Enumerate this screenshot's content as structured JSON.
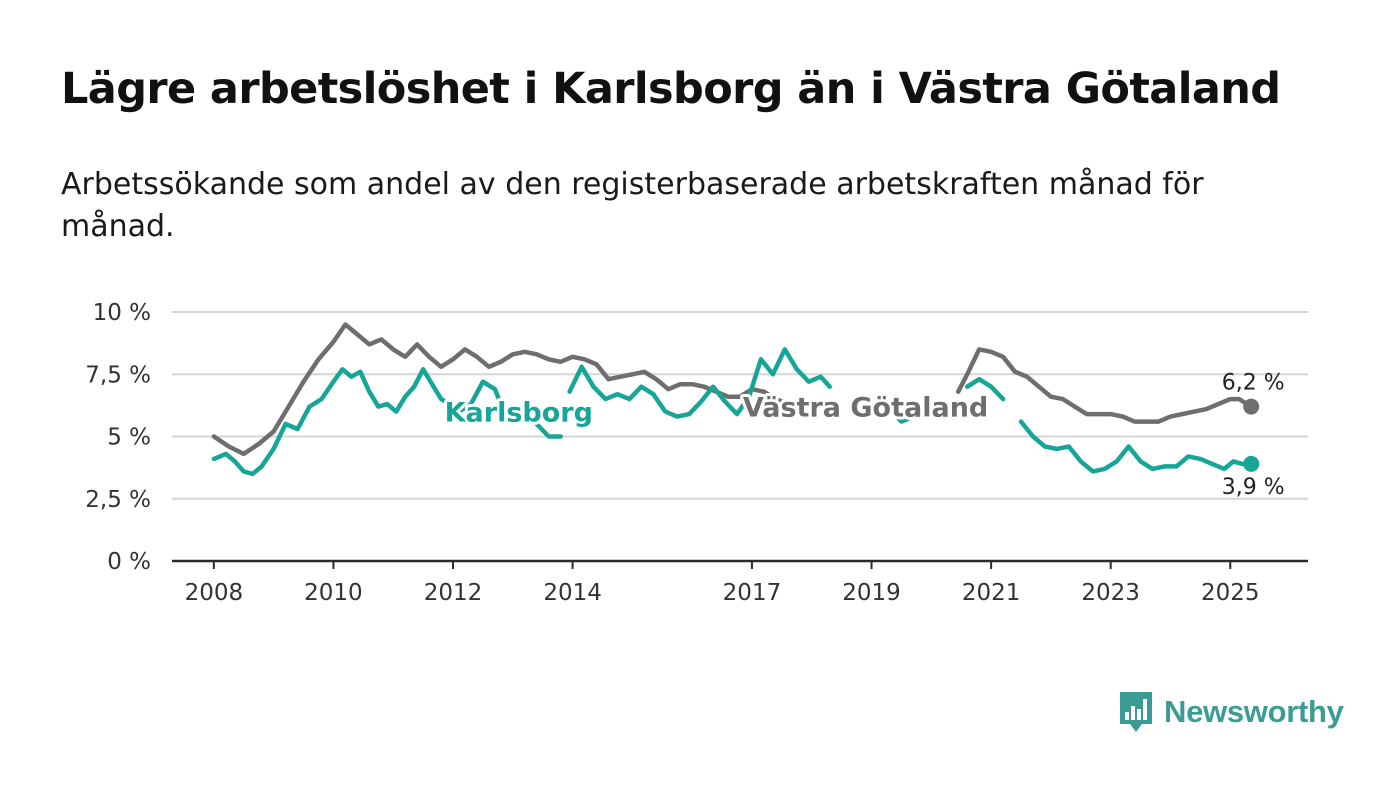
{
  "title": "Lägre arbetslöshet i Karlsborg än i Västra Götaland",
  "subtitle": "Arbetssökande som andel av den registerbaserade arbetskraften månad för månad.",
  "brand": {
    "name": "Newsworthy",
    "color": "#3b9c96"
  },
  "chart_data": {
    "type": "line",
    "title": "Lägre arbetslöshet i Karlsborg än i Västra Götaland",
    "ylim": [
      0,
      10
    ],
    "xlim": [
      2007.3,
      2026.3
    ],
    "y_ticks": [
      0,
      2.5,
      5,
      7.5,
      10
    ],
    "y_tick_labels": [
      "0 %",
      "2,5 %",
      "5 %",
      "7,5 %",
      "10 %"
    ],
    "x_ticks": [
      2008,
      2010,
      2012,
      2014,
      2017,
      2019,
      2021,
      2023,
      2025
    ],
    "x_tick_labels": [
      "2008",
      "2010",
      "2012",
      "2014",
      "2017",
      "2019",
      "2021",
      "2023",
      "2025"
    ],
    "grid": "horizontal",
    "legend": "inline labels",
    "series": [
      {
        "name": "Västra Götaland",
        "color": "#6e6e71",
        "label_pos": [
          2018.9,
          6.2
        ],
        "end_value_label": "6,2 %",
        "segments": [
          [
            [
              2008.0,
              5.0
            ],
            [
              2008.25,
              4.6
            ],
            [
              2008.5,
              4.3
            ],
            [
              2008.75,
              4.7
            ],
            [
              2009.0,
              5.2
            ],
            [
              2009.25,
              6.2
            ],
            [
              2009.5,
              7.2
            ],
            [
              2009.75,
              8.1
            ],
            [
              2010.0,
              8.8
            ],
            [
              2010.2,
              9.5
            ],
            [
              2010.4,
              9.1
            ],
            [
              2010.6,
              8.7
            ],
            [
              2010.8,
              8.9
            ],
            [
              2011.0,
              8.5
            ],
            [
              2011.2,
              8.2
            ],
            [
              2011.4,
              8.7
            ],
            [
              2011.6,
              8.2
            ],
            [
              2011.8,
              7.8
            ],
            [
              2012.0,
              8.1
            ],
            [
              2012.2,
              8.5
            ],
            [
              2012.4,
              8.2
            ],
            [
              2012.6,
              7.8
            ],
            [
              2012.8,
              8.0
            ],
            [
              2013.0,
              8.3
            ],
            [
              2013.2,
              8.4
            ],
            [
              2013.4,
              8.3
            ],
            [
              2013.6,
              8.1
            ],
            [
              2013.8,
              8.0
            ],
            [
              2014.0,
              8.2
            ],
            [
              2014.2,
              8.1
            ],
            [
              2014.4,
              7.9
            ],
            [
              2014.6,
              7.3
            ],
            [
              2014.8,
              7.4
            ],
            [
              2015.0,
              7.5
            ],
            [
              2015.2,
              7.6
            ],
            [
              2015.4,
              7.3
            ],
            [
              2015.6,
              6.9
            ],
            [
              2015.8,
              7.1
            ],
            [
              2016.0,
              7.1
            ],
            [
              2016.2,
              7.0
            ],
            [
              2016.4,
              6.8
            ],
            [
              2016.6,
              6.6
            ],
            [
              2016.8,
              6.6
            ],
            [
              2017.0,
              6.9
            ],
            [
              2017.2,
              6.8
            ],
            [
              2017.4,
              6.5
            ],
            [
              2017.5,
              6.4
            ]
          ],
          [
            [
              2020.45,
              6.8
            ],
            [
              2020.6,
              7.5
            ],
            [
              2020.8,
              8.5
            ],
            [
              2021.0,
              8.4
            ],
            [
              2021.2,
              8.2
            ],
            [
              2021.4,
              7.6
            ],
            [
              2021.6,
              7.4
            ],
            [
              2021.8,
              7.0
            ],
            [
              2022.0,
              6.6
            ],
            [
              2022.2,
              6.5
            ],
            [
              2022.4,
              6.2
            ],
            [
              2022.6,
              5.9
            ],
            [
              2022.8,
              5.9
            ],
            [
              2023.0,
              5.9
            ],
            [
              2023.2,
              5.8
            ],
            [
              2023.4,
              5.6
            ],
            [
              2023.6,
              5.6
            ],
            [
              2023.8,
              5.6
            ],
            [
              2024.0,
              5.8
            ],
            [
              2024.2,
              5.9
            ],
            [
              2024.4,
              6.0
            ],
            [
              2024.6,
              6.1
            ],
            [
              2024.8,
              6.3
            ],
            [
              2025.0,
              6.5
            ],
            [
              2025.15,
              6.5
            ],
            [
              2025.35,
              6.2
            ]
          ]
        ]
      },
      {
        "name": "Karlsborg",
        "color": "#17a597",
        "label_pos": [
          2013.1,
          6.0
        ],
        "end_value_label": "3,9 %",
        "segments": [
          [
            [
              2008.0,
              4.1
            ],
            [
              2008.2,
              4.3
            ],
            [
              2008.35,
              4.0
            ],
            [
              2008.5,
              3.6
            ],
            [
              2008.65,
              3.5
            ],
            [
              2008.8,
              3.8
            ],
            [
              2009.0,
              4.5
            ],
            [
              2009.2,
              5.5
            ],
            [
              2009.4,
              5.3
            ],
            [
              2009.6,
              6.2
            ],
            [
              2009.8,
              6.5
            ],
            [
              2010.0,
              7.2
            ],
            [
              2010.15,
              7.7
            ],
            [
              2010.3,
              7.4
            ],
            [
              2010.45,
              7.6
            ],
            [
              2010.6,
              6.8
            ],
            [
              2010.75,
              6.2
            ],
            [
              2010.9,
              6.3
            ],
            [
              2011.05,
              6.0
            ],
            [
              2011.2,
              6.6
            ],
            [
              2011.35,
              7.0
            ],
            [
              2011.5,
              7.7
            ],
            [
              2011.65,
              7.1
            ],
            [
              2011.8,
              6.5
            ],
            [
              2011.95,
              6.3
            ],
            [
              2012.1,
              6.0
            ],
            [
              2012.3,
              6.3
            ],
            [
              2012.5,
              7.2
            ],
            [
              2012.7,
              6.9
            ],
            [
              2012.85,
              6.0
            ],
            [
              2013.0,
              5.8
            ]
          ],
          [
            [
              2013.4,
              5.5
            ],
            [
              2013.6,
              5.0
            ],
            [
              2013.8,
              5.0
            ]
          ],
          [
            [
              2013.95,
              6.8
            ],
            [
              2014.15,
              7.8
            ],
            [
              2014.35,
              7.0
            ],
            [
              2014.55,
              6.5
            ],
            [
              2014.75,
              6.7
            ],
            [
              2014.95,
              6.5
            ],
            [
              2015.15,
              7.0
            ],
            [
              2015.35,
              6.7
            ],
            [
              2015.55,
              6.0
            ],
            [
              2015.75,
              5.8
            ],
            [
              2015.95,
              5.9
            ],
            [
              2016.15,
              6.4
            ],
            [
              2016.35,
              7.0
            ],
            [
              2016.55,
              6.4
            ],
            [
              2016.75,
              5.9
            ],
            [
              2016.95,
              6.6
            ],
            [
              2017.15,
              8.1
            ],
            [
              2017.35,
              7.5
            ],
            [
              2017.55,
              8.5
            ],
            [
              2017.75,
              7.7
            ],
            [
              2017.95,
              7.2
            ],
            [
              2018.15,
              7.4
            ],
            [
              2018.3,
              7.0
            ]
          ],
          [
            [
              2019.3,
              6.1
            ],
            [
              2019.5,
              5.6
            ],
            [
              2019.7,
              5.8
            ]
          ],
          [
            [
              2020.6,
              7.0
            ],
            [
              2020.8,
              7.3
            ],
            [
              2021.0,
              7.0
            ],
            [
              2021.2,
              6.5
            ]
          ],
          [
            [
              2021.5,
              5.6
            ],
            [
              2021.7,
              5.0
            ],
            [
              2021.9,
              4.6
            ],
            [
              2022.1,
              4.5
            ],
            [
              2022.3,
              4.6
            ],
            [
              2022.5,
              4.0
            ],
            [
              2022.7,
              3.6
            ],
            [
              2022.9,
              3.7
            ],
            [
              2023.1,
              4.0
            ],
            [
              2023.3,
              4.6
            ],
            [
              2023.5,
              4.0
            ],
            [
              2023.7,
              3.7
            ],
            [
              2023.9,
              3.8
            ],
            [
              2024.1,
              3.8
            ],
            [
              2024.3,
              4.2
            ],
            [
              2024.5,
              4.1
            ],
            [
              2024.7,
              3.9
            ],
            [
              2024.9,
              3.7
            ],
            [
              2025.05,
              4.0
            ],
            [
              2025.2,
              3.9
            ],
            [
              2025.35,
              3.9
            ]
          ]
        ]
      }
    ]
  }
}
